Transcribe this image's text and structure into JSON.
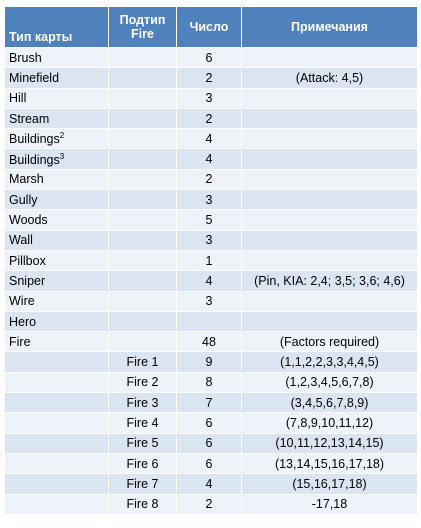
{
  "table": {
    "header": [
      "Тип карты",
      "Подтип Fire",
      "Число",
      "Примечания"
    ],
    "rows": [
      {
        "type": "Brush",
        "count": 6
      },
      {
        "type": "Minefield",
        "count": 2,
        "note": "(Attack: 4,5)"
      },
      {
        "type": "Hill",
        "count": 3
      },
      {
        "type": "Stream",
        "count": 2
      },
      {
        "type": "Buildings",
        "sup": "2",
        "count": 4
      },
      {
        "type": "Buildings",
        "sup": "3",
        "count": 4
      },
      {
        "type": "Marsh",
        "count": 2
      },
      {
        "type": "Gully",
        "count": 3
      },
      {
        "type": "Woods",
        "count": 5
      },
      {
        "type": "Wall",
        "count": 3
      },
      {
        "type": "Pillbox",
        "count": 1
      },
      {
        "type": "Sniper",
        "count": 4,
        "note": "(Pin, KIA: 2,4; 3,5; 3,6; 4,6)"
      },
      {
        "type": "Wire",
        "count": 3
      },
      {
        "type": "Hero"
      },
      {
        "type": "Fire",
        "count": 48,
        "note": "(Factors required)"
      },
      {
        "subtype": "Fire 1",
        "count": 9,
        "note": "(1,1,2,2,3,3,4,4,5)"
      },
      {
        "subtype": "Fire 2",
        "count": 8,
        "note": "(1,2,3,4,5,6,7,8)"
      },
      {
        "subtype": "Fire 3",
        "count": 7,
        "note": "(3,4,5,6,7,8,9)"
      },
      {
        "subtype": "Fire 4",
        "count": 6,
        "note": "(7,8,9,10,11,12)"
      },
      {
        "subtype": "Fire 5",
        "count": 6,
        "note": "(10,11,12,13,14,15)"
      },
      {
        "subtype": "Fire 6",
        "count": 6,
        "note": "(13,14,15,16,17,18)"
      },
      {
        "subtype": "Fire 7",
        "count": 4,
        "note": "(15,16,17,18)"
      },
      {
        "subtype": "Fire 8",
        "count": 2,
        "note": "-17,18"
      }
    ]
  }
}
